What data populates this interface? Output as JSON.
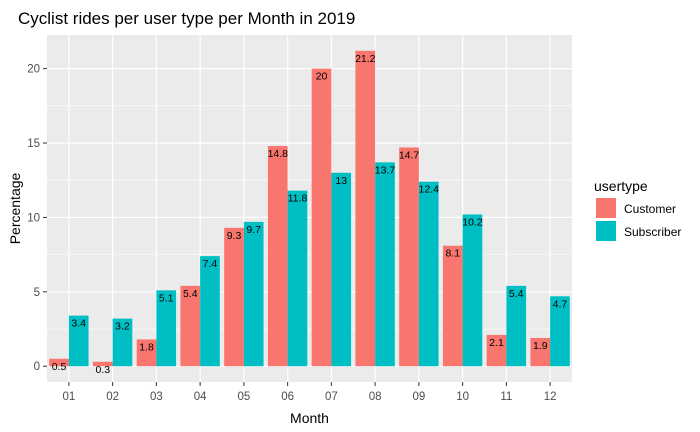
{
  "chart_data": {
    "type": "bar",
    "title": "Cyclist rides per user type per Month in 2019",
    "xlabel": "Month",
    "ylabel": "Percentage",
    "categories": [
      "01",
      "02",
      "03",
      "04",
      "05",
      "06",
      "07",
      "08",
      "09",
      "10",
      "11",
      "12"
    ],
    "series": [
      {
        "name": "Customer",
        "color": "#F8766D",
        "values": [
          0.5,
          0.3,
          1.8,
          5.4,
          9.3,
          14.8,
          20,
          21.2,
          14.7,
          8.1,
          2.1,
          1.9
        ]
      },
      {
        "name": "Subscriber",
        "color": "#00BFC4",
        "values": [
          3.4,
          3.2,
          5.1,
          7.4,
          9.7,
          11.8,
          13,
          13.7,
          12.4,
          10.2,
          5.4,
          4.7
        ]
      }
    ],
    "ylim": [
      -1.06,
      22.26
    ],
    "yticks": [
      0,
      5,
      10,
      15,
      20
    ],
    "grid": true,
    "legend": {
      "title": "usertype",
      "position": "right"
    },
    "panel_background": "#EBEBEB",
    "grid_color": "#FFFFFF"
  }
}
